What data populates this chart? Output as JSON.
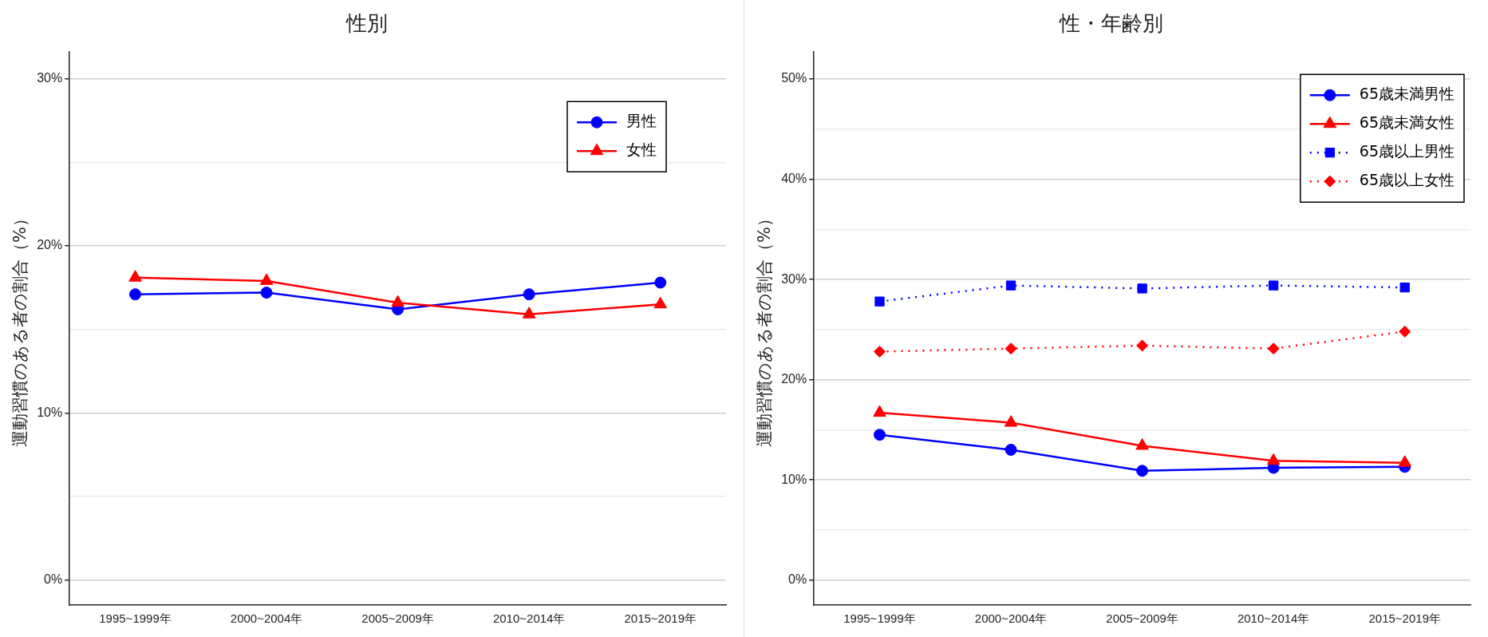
{
  "chart_data": [
    {
      "type": "line",
      "title": "性別",
      "ylabel": "運動習慣のある者の割合（%）",
      "categories": [
        "1995~1999年",
        "2000~2004年",
        "2005~2009年",
        "2010~2014年",
        "2015~2019年"
      ],
      "series": [
        {
          "name": "男性",
          "color": "#0000ff",
          "marker": "circle",
          "line_style": "solid",
          "values": [
            17.1,
            17.2,
            16.2,
            17.1,
            17.8
          ]
        },
        {
          "name": "女性",
          "color": "#ff0000",
          "marker": "triangle",
          "line_style": "solid",
          "values": [
            18.1,
            17.9,
            16.6,
            15.9,
            16.5
          ]
        }
      ],
      "ylim": [
        -1.5,
        31.6
      ],
      "yticks": [
        {
          "value": 0,
          "label": "0%"
        },
        {
          "value": 5,
          "label": null
        },
        {
          "value": 10,
          "label": "10%"
        },
        {
          "value": 15,
          "label": null
        },
        {
          "value": 20,
          "label": "20%"
        },
        {
          "value": 25,
          "label": null
        },
        {
          "value": 30,
          "label": "30%"
        }
      ],
      "grid": "y",
      "legend": "top right"
    },
    {
      "type": "line",
      "title": "性・年齢別",
      "ylabel": "運動習慣のある者の割合（%）",
      "categories": [
        "1995~1999年",
        "2000~2004年",
        "2005~2009年",
        "2010~2014年",
        "2015~2019年"
      ],
      "series": [
        {
          "name": "65歳未満男性",
          "color": "#0000ff",
          "marker": "circle",
          "line_style": "solid",
          "values": [
            14.5,
            13.0,
            10.9,
            11.2,
            11.3
          ]
        },
        {
          "name": "65歳未満女性",
          "color": "#ff0000",
          "marker": "triangle",
          "line_style": "solid",
          "values": [
            16.7,
            15.7,
            13.4,
            11.9,
            11.7
          ]
        },
        {
          "name": "65歳以上男性",
          "color": "#0000ff",
          "marker": "square",
          "line_style": "dotted",
          "values": [
            27.8,
            29.4,
            29.1,
            29.4,
            29.2
          ]
        },
        {
          "name": "65歳以上女性",
          "color": "#ff0000",
          "marker": "diamond",
          "line_style": "dotted",
          "values": [
            22.8,
            23.1,
            23.4,
            23.1,
            24.8
          ]
        }
      ],
      "ylim": [
        -2.5,
        52.7
      ],
      "yticks": [
        {
          "value": 0,
          "label": "0%"
        },
        {
          "value": 5,
          "label": null
        },
        {
          "value": 10,
          "label": "10%"
        },
        {
          "value": 15,
          "label": null
        },
        {
          "value": 20,
          "label": "20%"
        },
        {
          "value": 25,
          "label": null
        },
        {
          "value": 30,
          "label": "30%"
        },
        {
          "value": 35,
          "label": null
        },
        {
          "value": 40,
          "label": "40%"
        },
        {
          "value": 45,
          "label": null
        },
        {
          "value": 50,
          "label": "50%"
        }
      ],
      "grid": "y",
      "legend": "top right"
    }
  ]
}
